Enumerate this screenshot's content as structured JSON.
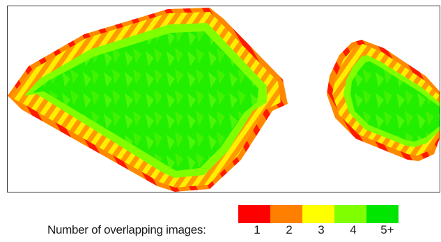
{
  "legend": {
    "title": "Number of overlapping images:",
    "classes": [
      {
        "label": "1",
        "color": "#ff0000"
      },
      {
        "label": "2",
        "color": "#ff8000"
      },
      {
        "label": "3",
        "color": "#ffff00"
      },
      {
        "label": "4",
        "color": "#80ff00"
      },
      {
        "label": "5+",
        "color": "#00e600"
      }
    ]
  }
}
